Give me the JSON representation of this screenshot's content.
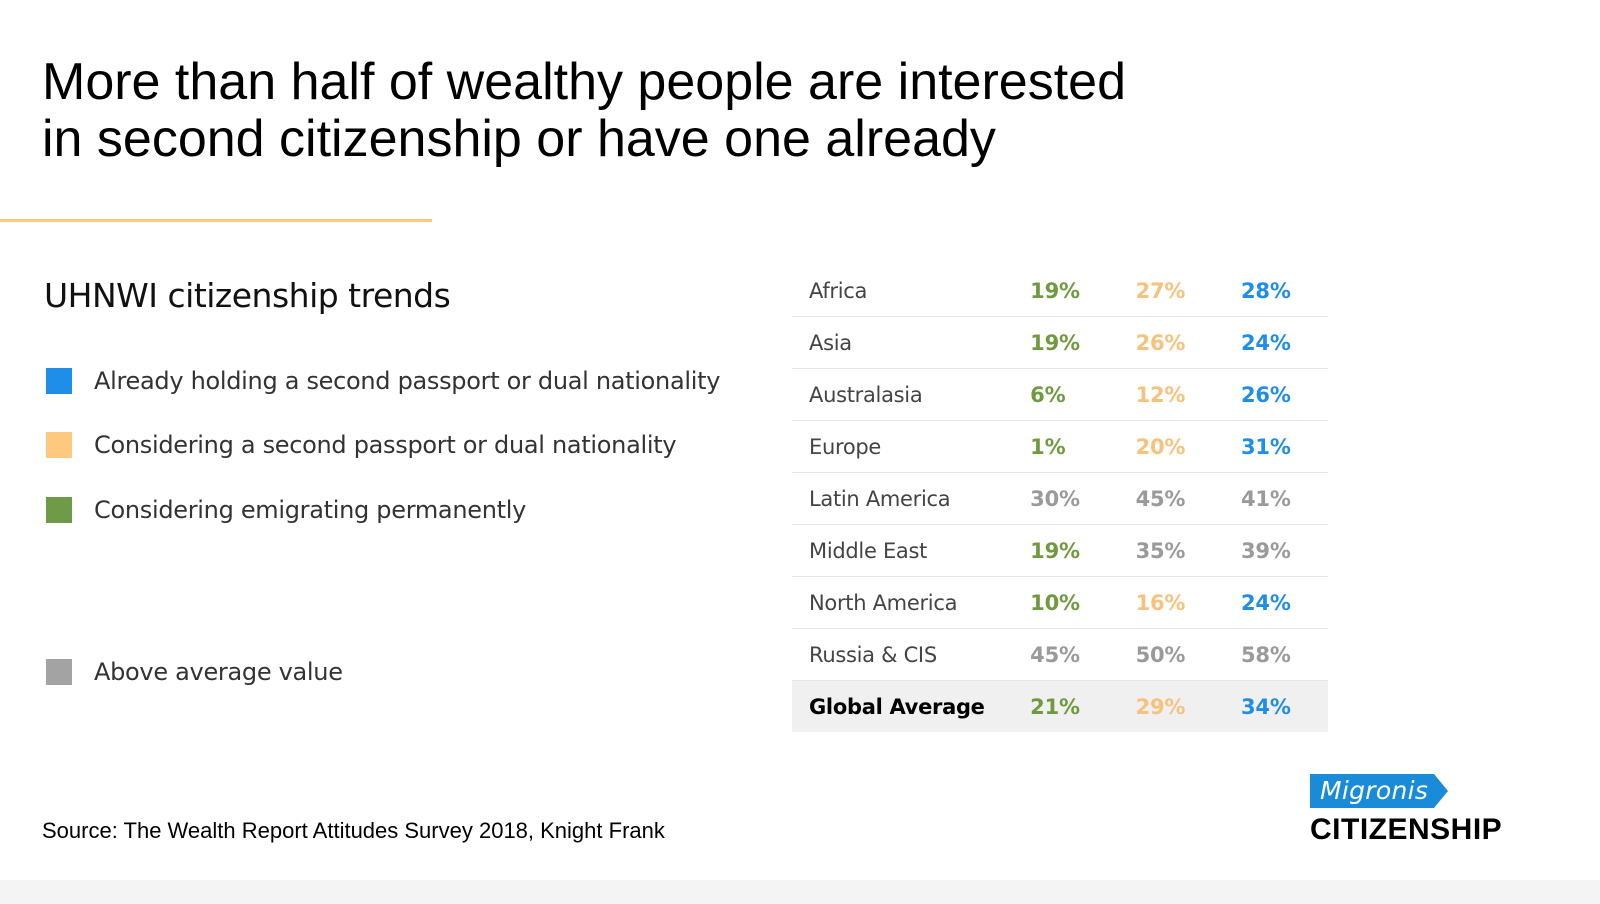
{
  "headline": {
    "line1": "More than half of wealthy people are interested",
    "line2": "in second citizenship or have one already"
  },
  "colors": {
    "accent_rule": "#ffc77a",
    "green": "#6f9a3f",
    "orange": "#f7c27c",
    "blue": "#1f8ee8",
    "gray": "#9a9a9a",
    "average_row_bg": "#f0f0f0",
    "logo_blue": "#1a8bd9"
  },
  "chart_data": {
    "type": "table",
    "title": "UHNWI citizenship trends",
    "legend": [
      {
        "label": "Already holding a second passport or dual nationality",
        "color": "#1f8ee8"
      },
      {
        "label": "Considering a second passport or dual nationality",
        "color": "#ffc87f"
      },
      {
        "label": "Considering emigrating permanently",
        "color": "#6f9a47"
      },
      {
        "label": "Above average value",
        "color": "#a3a3a3"
      }
    ],
    "columns": [
      "Considering emigrating permanently",
      "Considering a second passport or dual nationality",
      "Already holding a second passport or dual nationality"
    ],
    "rows": [
      {
        "region": "Africa",
        "values": [
          "19%",
          "27%",
          "28%"
        ],
        "colors": [
          "green",
          "orange",
          "blue"
        ]
      },
      {
        "region": "Asia",
        "values": [
          "19%",
          "26%",
          "24%"
        ],
        "colors": [
          "green",
          "orange",
          "blue"
        ]
      },
      {
        "region": "Australasia",
        "values": [
          "6%",
          "12%",
          "26%"
        ],
        "colors": [
          "green",
          "orange",
          "blue"
        ]
      },
      {
        "region": "Europe",
        "values": [
          "1%",
          "20%",
          "31%"
        ],
        "colors": [
          "green",
          "orange",
          "blue"
        ]
      },
      {
        "region": "Latin America",
        "values": [
          "30%",
          "45%",
          "41%"
        ],
        "colors": [
          "gray",
          "gray",
          "gray"
        ]
      },
      {
        "region": "Middle East",
        "values": [
          "19%",
          "35%",
          "39%"
        ],
        "colors": [
          "green",
          "gray",
          "gray"
        ]
      },
      {
        "region": "North America",
        "values": [
          "10%",
          "16%",
          "24%"
        ],
        "colors": [
          "green",
          "orange",
          "blue"
        ]
      },
      {
        "region": "Russia & CIS",
        "values": [
          "45%",
          "50%",
          "58%"
        ],
        "colors": [
          "gray",
          "gray",
          "gray"
        ]
      }
    ],
    "average": {
      "region": "Global Average",
      "values": [
        "21%",
        "29%",
        "34%"
      ],
      "colors": [
        "green",
        "orange",
        "blue"
      ]
    }
  },
  "source": "Source: The Wealth Report Attitudes Survey 2018, Knight Frank",
  "logo": {
    "tag": "Migronis",
    "word": "CITIZENSHIP"
  }
}
